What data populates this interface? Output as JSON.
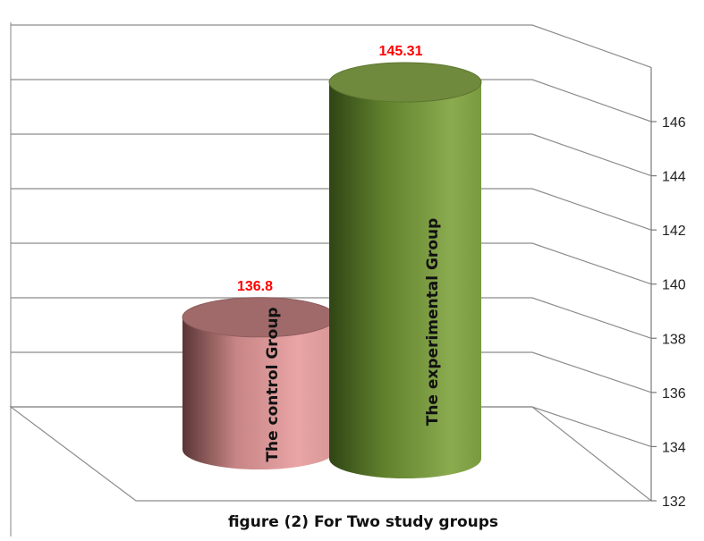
{
  "chart_data": {
    "type": "bar",
    "title": "",
    "caption": "figure (2) For Two study groups",
    "categories": [
      "The control Group",
      "The experimental Group"
    ],
    "series": [
      {
        "values": [
          136.8,
          145.31
        ]
      }
    ],
    "value_labels": [
      "136.8",
      "145.31"
    ],
    "ylim": [
      132,
      148
    ],
    "yticks": [
      132,
      134,
      136,
      138,
      140,
      142,
      144,
      146
    ],
    "grid": true,
    "style": "3d-cylinder",
    "colors": {
      "control": "#dd8e8e",
      "experimental": "#6f8f35",
      "value_label": "#ff0000",
      "grid": "#8c8c8c"
    }
  }
}
